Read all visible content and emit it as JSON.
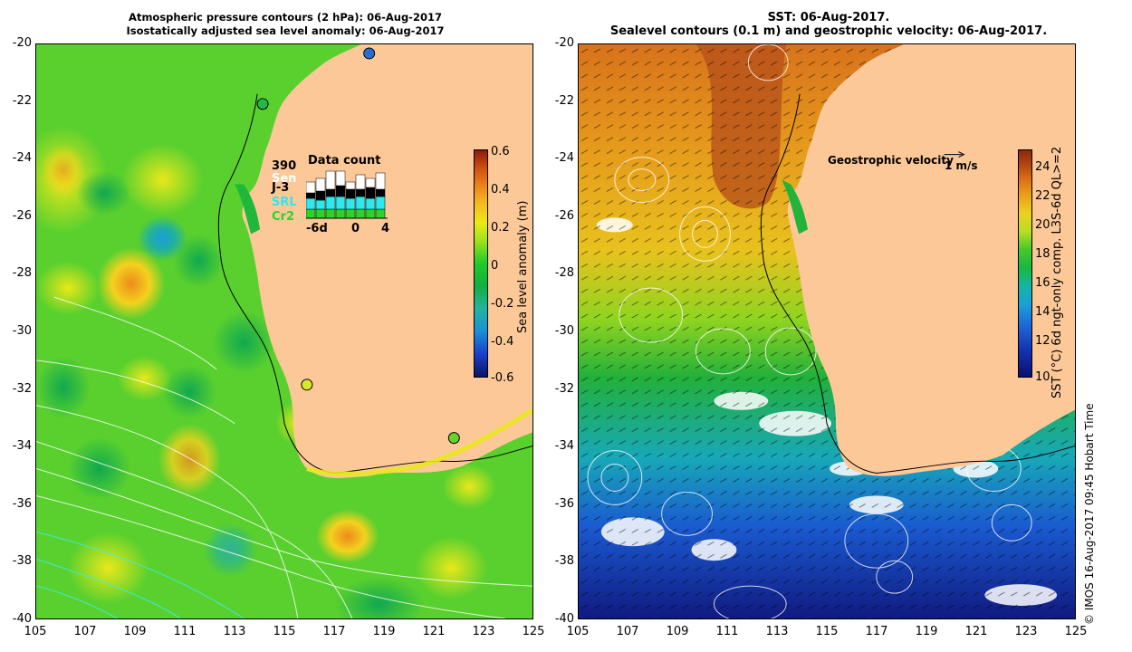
{
  "left_panel": {
    "title_line1": "Atmospheric pressure contours (2 hPa): 06-Aug-2017",
    "title_line2": "Isostatically adjusted sea level anomaly: 06-Aug-2017",
    "colorbar": {
      "label": "Sea level anomaly (m)",
      "ticks": [
        "0.6",
        "0.4",
        "0.2",
        "0",
        "-0.2",
        "-0.4",
        "-0.6"
      ]
    },
    "inset": {
      "title": "Data count",
      "max_label": "390",
      "series": [
        {
          "label": "Sen",
          "color": "#ffffff"
        },
        {
          "label": "J-3",
          "color": "#000000"
        },
        {
          "label": "SRL",
          "color": "#2ee8ee"
        },
        {
          "label": "Cr2",
          "color": "#2ad42a"
        }
      ],
      "x_ticks": [
        "-6d",
        "0",
        "4"
      ]
    }
  },
  "right_panel": {
    "title_line1": "SST: 06-Aug-2017.",
    "title_line2": "Sealevel contours (0.1 m) and geostrophic velocity: 06-Aug-2017.",
    "geostrophic_label": "Geostrophic velocity",
    "scale_label": "1 m/s",
    "colorbar": {
      "label": "SST (°C) 6d ngt-only comp. L3S-6d QL>=2",
      "ticks": [
        "24",
        "22",
        "20",
        "18",
        "16",
        "14",
        "12",
        "10"
      ]
    }
  },
  "axes": {
    "y_ticks": [
      "-20",
      "-22",
      "-24",
      "-26",
      "-28",
      "-30",
      "-32",
      "-34",
      "-36",
      "-38",
      "-40"
    ],
    "x_ticks": [
      "105",
      "107",
      "109",
      "111",
      "113",
      "115",
      "117",
      "119",
      "121",
      "123",
      "125"
    ]
  },
  "credit": "© IMOS 16-Aug-2017 09:45 Hobart Time",
  "colors": {
    "land": "#fcc898",
    "coast_line": "#000000"
  }
}
